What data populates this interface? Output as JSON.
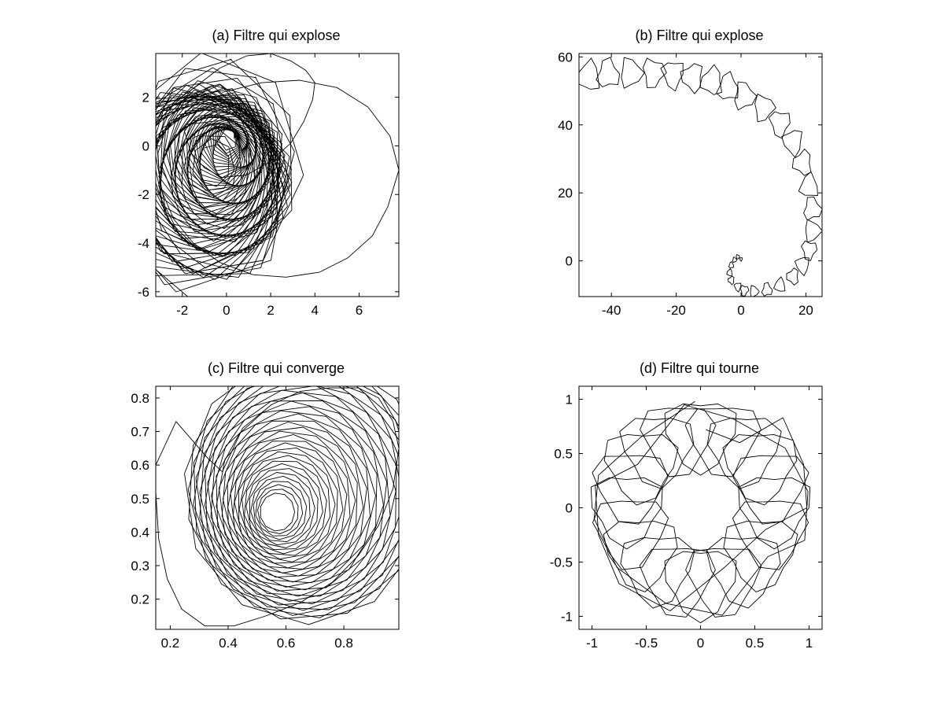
{
  "figure": {
    "background": "#ffffff",
    "axis_color": "#000000",
    "line_color": "#000000"
  },
  "chart_data": [
    {
      "id": "a",
      "type": "line",
      "title": "(a) Filtre qui explose",
      "xlim": [
        -3.2,
        7.8
      ],
      "ylim": [
        -6.2,
        3.8
      ],
      "xticks": [
        -2,
        0,
        2,
        4,
        6
      ],
      "yticks": [
        -6,
        -4,
        -2,
        0,
        2
      ],
      "xtick_labels": [
        "-2",
        "0",
        "2",
        "4",
        "6"
      ],
      "ytick_labels": [
        "-6",
        "-4",
        "-2",
        "0",
        "2"
      ],
      "grid": false,
      "legend": "none",
      "series": [
        {
          "x": [
            0.55,
            0.1,
            -0.7,
            -1.4,
            -1.9,
            -1.6,
            -1.0,
            -0.2,
            0.9,
            1.9,
            2.9,
            3.5,
            3.9,
            4.0,
            3.6,
            2.9,
            2.0,
            0.9,
            -0.3,
            -1.6,
            -2.6,
            -3.1,
            -3.0,
            -2.4,
            -1.5,
            -0.3,
            1.2,
            2.7,
            4.2,
            5.5,
            6.6,
            7.3,
            7.8,
            7.4,
            6.4,
            5.0,
            3.3,
            1.6,
            -0.2
          ],
          "y": [
            0.4,
            1.0,
            1.3,
            1.2,
            0.6,
            -0.3,
            -0.9,
            -1.3,
            -1.2,
            -0.7,
            0.1,
            1.0,
            1.9,
            2.6,
            3.1,
            3.5,
            3.8,
            3.7,
            3.2,
            2.3,
            1.1,
            -0.3,
            -1.7,
            -3.0,
            -4.0,
            -4.8,
            -5.3,
            -5.4,
            -5.2,
            -4.6,
            -3.7,
            -2.5,
            -1.0,
            0.4,
            1.6,
            2.4,
            2.7,
            2.6,
            2.2
          ]
        }
      ]
    },
    {
      "id": "b",
      "type": "line",
      "title": "(b) Filtre qui explose",
      "xlim": [
        -50,
        25
      ],
      "ylim": [
        -10.5,
        61
      ],
      "xticks": [
        -40,
        -20,
        0,
        20
      ],
      "yticks": [
        0,
        20,
        40,
        60
      ],
      "xtick_labels": [
        "-40",
        "-20",
        "0",
        "20"
      ],
      "ytick_labels": [
        "0",
        "20",
        "40",
        "60"
      ],
      "grid": false,
      "legend": "none",
      "series": [
        {
          "x": [
            0,
            -1,
            -2,
            -3,
            -3.5,
            -3,
            -1,
            1,
            4,
            8,
            12,
            16,
            19,
            21,
            22,
            22,
            21,
            19,
            16,
            12,
            7,
            1,
            -4,
            -9,
            -15,
            -21,
            -27,
            -34,
            -41,
            -47
          ],
          "y": [
            0.5,
            1.2,
            0.3,
            -1.3,
            -3.5,
            -5.7,
            -7.6,
            -8.7,
            -9.0,
            -8.5,
            -7.2,
            -4.6,
            -1.2,
            3.2,
            8.8,
            15.3,
            22.0,
            28.8,
            35.0,
            40.5,
            45.0,
            48.5,
            51.0,
            52.8,
            54.0,
            54.9,
            55.3,
            55.3,
            55.0,
            54.3
          ],
          "r": [
            0.4,
            0.5,
            0.6,
            0.7,
            0.8,
            0.9,
            1.0,
            1.2,
            1.3,
            1.5,
            1.6,
            1.8,
            2.0,
            2.2,
            2.4,
            2.6,
            2.7,
            2.8,
            2.9,
            3.0,
            3.0,
            3.1,
            3.1,
            3.2,
            3.2,
            3.2,
            3.3,
            3.3,
            3.3,
            3.4
          ]
        }
      ]
    },
    {
      "id": "c",
      "type": "line",
      "title": "(c) Filtre qui converge",
      "xlim": [
        0.15,
        0.99
      ],
      "ylim": [
        0.11,
        0.835
      ],
      "xticks": [
        0.2,
        0.4,
        0.6,
        0.8
      ],
      "yticks": [
        0.2,
        0.3,
        0.4,
        0.5,
        0.6,
        0.7,
        0.8
      ],
      "xtick_labels": [
        "0.2",
        "0.4",
        "0.6",
        "0.8"
      ],
      "ytick_labels": [
        "0.2",
        "0.3",
        "0.4",
        "0.5",
        "0.6",
        "0.7",
        "0.8"
      ],
      "grid": false,
      "legend": "none",
      "series": [
        {
          "x": [
            0.15,
            0.22,
            0.28,
            0.33,
            0.38,
            0.45,
            0.55,
            0.65,
            0.75,
            0.85,
            0.92,
            0.97,
            0.99,
            0.97,
            0.92,
            0.85,
            0.76,
            0.65,
            0.53,
            0.42,
            0.32,
            0.24,
            0.19,
            0.16,
            0.15
          ],
          "y": [
            0.6,
            0.73,
            0.67,
            0.62,
            0.58,
            0.71,
            0.78,
            0.82,
            0.83,
            0.83,
            0.8,
            0.73,
            0.65,
            0.53,
            0.42,
            0.33,
            0.25,
            0.19,
            0.15,
            0.12,
            0.12,
            0.17,
            0.26,
            0.38,
            0.52
          ]
        }
      ]
    },
    {
      "id": "d",
      "type": "line",
      "title": "(d) Filtre qui tourne",
      "xlim": [
        -1.12,
        1.12
      ],
      "ylim": [
        -1.12,
        1.12
      ],
      "xticks": [
        -1,
        -0.5,
        0,
        0.5,
        1
      ],
      "yticks": [
        -1,
        -0.5,
        0,
        0.5,
        1
      ],
      "xtick_labels": [
        "-1",
        "-0.5",
        "0",
        "0.5",
        "1"
      ],
      "ytick_labels": [
        "-1",
        "-0.5",
        "0",
        "0.5",
        "1"
      ],
      "grid": false,
      "legend": "none",
      "series": [
        {
          "x": [
            0.05,
            0.36,
            0.76,
            0.95,
            0.98,
            0.6,
            0.22,
            -0.28,
            -0.75,
            -0.94,
            -0.97,
            -0.58,
            -0.15,
            0.3,
            0.78,
            0.99,
            0.96,
            0.62,
            0.2,
            -0.32,
            -0.77,
            -0.98,
            -0.94,
            -0.55,
            -0.05
          ],
          "y": [
            0.72,
            0.6,
            0.83,
            0.4,
            0.0,
            -0.2,
            -0.55,
            -0.95,
            -0.7,
            -0.25,
            0.2,
            0.4,
            0.95,
            0.82,
            0.55,
            0.15,
            -0.3,
            -0.45,
            -0.99,
            -0.88,
            -0.55,
            -0.1,
            0.3,
            0.65,
            0.98
          ]
        }
      ]
    }
  ]
}
